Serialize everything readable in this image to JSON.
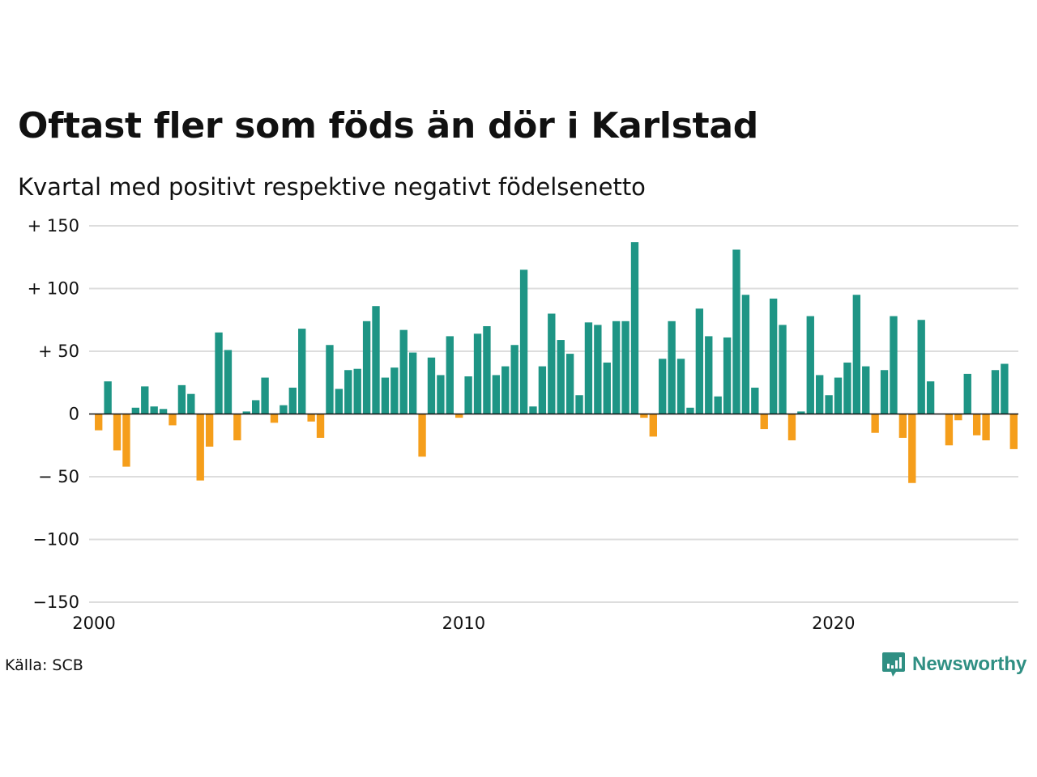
{
  "title": "Oftast fler som föds än dör i Karlstad",
  "subtitle": "Kvartal med positivt respektive negativt födelsenetto",
  "source": "Källa: SCB",
  "brand": "Newsworthy",
  "colors": {
    "positive": "#1e9585",
    "negative": "#f59e1b",
    "grid": "#dddddd",
    "axis": "#111111",
    "brand": "#2f8f83"
  },
  "chart_data": {
    "type": "bar",
    "title": "Oftast fler som föds än dör i Karlstad",
    "subtitle": "Kvartal med positivt respektive negativt födelsenetto",
    "xlabel": "",
    "ylabel": "",
    "ylim": [
      -150,
      150
    ],
    "yticks": [
      150,
      100,
      50,
      0,
      -50,
      -100,
      -150
    ],
    "ytick_labels": [
      "+ 150",
      "+ 100",
      "+  50",
      "0",
      "− 50",
      "−100",
      "−150"
    ],
    "xticks": [
      2000,
      2010,
      2020
    ],
    "xtick_labels": [
      "2000",
      "2010",
      "2020"
    ],
    "x_start": 2000,
    "periods_per_year": 4,
    "grid": true,
    "legend": "none",
    "values": [
      -13,
      26,
      -29,
      -42,
      5,
      22,
      6,
      4,
      -9,
      23,
      16,
      -53,
      -26,
      65,
      51,
      -21,
      2,
      11,
      29,
      -7,
      7,
      21,
      68,
      -6,
      -19,
      55,
      20,
      35,
      36,
      74,
      86,
      29,
      37,
      67,
      49,
      -34,
      45,
      31,
      62,
      -3,
      30,
      64,
      70,
      31,
      38,
      55,
      115,
      6,
      38,
      80,
      59,
      48,
      15,
      73,
      71,
      41,
      74,
      74,
      137,
      -3,
      -18,
      44,
      74,
      44,
      5,
      84,
      62,
      14,
      61,
      131,
      95,
      21,
      -12,
      92,
      71,
      -21,
      2,
      78,
      31,
      15,
      29,
      41,
      95,
      38,
      -15,
      35,
      78,
      -19,
      -55,
      75,
      26,
      0,
      -25,
      -5,
      32,
      -17,
      -21,
      35,
      40,
      -28
    ]
  }
}
